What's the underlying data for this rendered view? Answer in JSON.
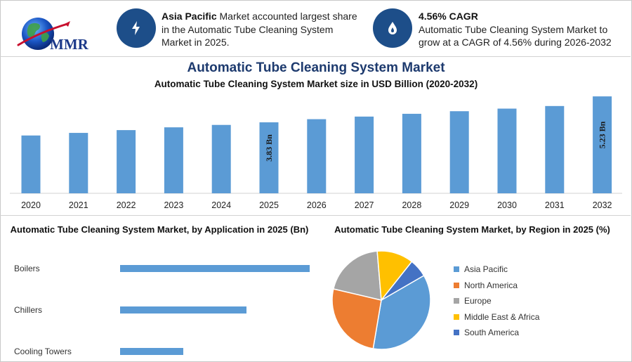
{
  "header": {
    "logo_text": "MMR",
    "info1": {
      "bold": "Asia Pacific",
      "text": " Market accounted largest share in the Automatic Tube Cleaning System Market in 2025."
    },
    "info2": {
      "bold": "4.56% CAGR",
      "text": "Automatic Tube Cleaning System Market to grow at a CAGR of 4.56% during 2026-2032"
    },
    "icons": [
      "lightning-icon",
      "flame-drop-icon"
    ]
  },
  "main_title": "Automatic Tube Cleaning System Market",
  "colors": {
    "bar": "#5b9bd5",
    "title": "#1d3a6e",
    "badge": "#1d4e89",
    "pie": [
      "#5b9bd5",
      "#ed7d31",
      "#a5a5a5",
      "#ffc000",
      "#4472c4"
    ]
  },
  "chart_data": [
    {
      "type": "bar",
      "title": "Automatic Tube Cleaning System Market size in USD Billion (2020-2032)",
      "categories": [
        "2020",
        "2021",
        "2022",
        "2023",
        "2024",
        "2025",
        "2026",
        "2027",
        "2028",
        "2029",
        "2030",
        "2031",
        "2032"
      ],
      "values": [
        3.12,
        3.26,
        3.41,
        3.56,
        3.69,
        3.83,
        4.0,
        4.14,
        4.29,
        4.43,
        4.57,
        4.71,
        5.23
      ],
      "data_labels": [
        {
          "index": 5,
          "text": "3.83 Bn"
        },
        {
          "index": 12,
          "text": "5.23 Bn"
        }
      ],
      "ylim": [
        0,
        5.5
      ],
      "grid": false
    },
    {
      "type": "bar",
      "orientation": "horizontal",
      "title": "Automatic Tube Cleaning System Market, by Application in 2025 (Bn)",
      "categories": [
        "Boilers",
        "Chillers",
        "Cooling Towers"
      ],
      "values": [
        1.5,
        1.0,
        0.5
      ]
    },
    {
      "type": "pie",
      "title": "Automatic Tube Cleaning System Market, by Region in 2025 (%)",
      "categories": [
        "Asia Pacific",
        "North America",
        "Europe",
        "Middle East & Africa",
        "South America"
      ],
      "values": [
        36,
        26,
        20,
        12,
        6
      ],
      "legend": "right"
    }
  ]
}
